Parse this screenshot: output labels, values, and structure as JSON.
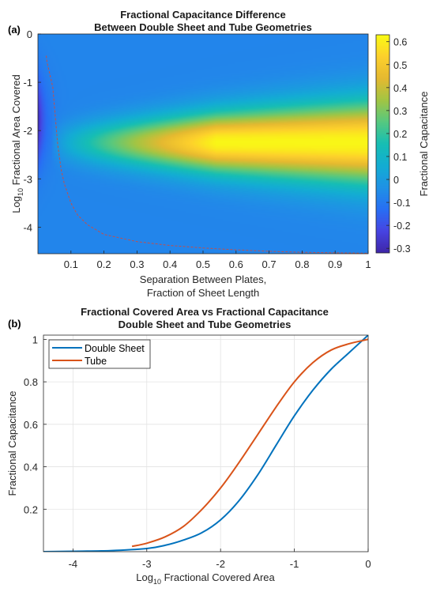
{
  "figure": {
    "panel_a_letter": "(a)",
    "panel_b_letter": "(b)"
  },
  "chart_data": [
    {
      "type": "heatmap",
      "title": "Fractional Capacitance Difference",
      "subtitle": "Between Double Sheet and Tube Geometries",
      "xlabel_line1": "Separation Between Plates,",
      "xlabel_line2": "Fraction of Sheet Length",
      "ylabel_prefix": "Log",
      "ylabel_sub": "10",
      "ylabel_rest": " Fractional  Area  Covered",
      "xlim": [
        0.0,
        1.0
      ],
      "ylim": [
        -4.55,
        0
      ],
      "xticks": [
        0.1,
        0.2,
        0.3,
        0.4,
        0.5,
        0.6,
        0.7,
        0.8,
        0.9,
        1
      ],
      "xtick_labels": [
        "0.1",
        "0.2",
        "0.3",
        "0.4",
        "0.5",
        "0.6",
        "0.7",
        "0.8",
        "0.9",
        "1"
      ],
      "yticks": [
        0,
        -1,
        -2,
        -3,
        -4
      ],
      "ytick_labels": [
        "0",
        "-1",
        "-2",
        "-3",
        "-4"
      ],
      "colorbar": {
        "label": "Fractional Capacitance",
        "range": [
          -0.32,
          0.63
        ],
        "ticks": [
          0.6,
          0.5,
          0.4,
          0.3,
          0.2,
          0.1,
          0,
          -0.1,
          -0.2,
          -0.3
        ],
        "tick_labels": [
          "0.6",
          "0.5",
          "0.4",
          "0.3",
          "0.2",
          "0.1",
          "0",
          "-0.1",
          "-0.2",
          "-0.3"
        ]
      },
      "field": {
        "peak_y": -2.25,
        "peak_value": 0.62,
        "background_value": -0.07,
        "min_value": -0.3
      },
      "zero_contour": {
        "color": "#c0504d",
        "x": [
          0.025,
          0.028,
          0.035,
          0.045,
          0.05,
          0.055,
          0.06,
          0.07,
          0.08,
          0.1,
          0.12,
          0.15,
          0.2,
          0.3,
          0.4,
          0.5,
          0.6,
          0.7,
          0.8,
          0.9,
          1.0
        ],
        "y": [
          -0.45,
          -0.6,
          -0.8,
          -1.1,
          -1.5,
          -1.9,
          -2.3,
          -2.8,
          -3.1,
          -3.5,
          -3.75,
          -3.95,
          -4.15,
          -4.3,
          -4.38,
          -4.43,
          -4.47,
          -4.5,
          -4.52,
          -4.53,
          -4.54
        ]
      }
    },
    {
      "type": "line",
      "title": "Fractional Covered Area vs Fractional Capacitance",
      "subtitle": "Double Sheet and Tube Geometries",
      "xlabel_prefix": "Log",
      "xlabel_sub": "10",
      "xlabel_rest": " Fractional  Covered  Area",
      "ylabel": "Fractional Capacitance",
      "xlim": [
        -4.4,
        0
      ],
      "ylim": [
        0,
        1.02
      ],
      "xticks": [
        -4,
        -3,
        -2,
        -1,
        0
      ],
      "xtick_labels": [
        "-4",
        "-3",
        "-2",
        "-1",
        "0"
      ],
      "yticks": [
        0.2,
        0.4,
        0.6,
        0.8,
        1
      ],
      "ytick_labels": [
        "0.2",
        "0.4",
        "0.6",
        "0.8",
        "1"
      ],
      "grid": true,
      "legend_position": "top-left",
      "series": [
        {
          "name": "Double Sheet",
          "color": "#0072bd",
          "x": [
            -4.4,
            -4.0,
            -3.5,
            -3.0,
            -2.75,
            -2.5,
            -2.25,
            -2.0,
            -1.75,
            -1.5,
            -1.25,
            -1.0,
            -0.75,
            -0.5,
            -0.25,
            0.0
          ],
          "y": [
            0.0,
            0.002,
            0.005,
            0.015,
            0.03,
            0.055,
            0.09,
            0.15,
            0.24,
            0.36,
            0.5,
            0.64,
            0.76,
            0.86,
            0.94,
            1.02
          ]
        },
        {
          "name": "Tube",
          "color": "#d95319",
          "x": [
            -3.2,
            -3.0,
            -2.75,
            -2.5,
            -2.25,
            -2.0,
            -1.75,
            -1.5,
            -1.25,
            -1.0,
            -0.75,
            -0.5,
            -0.25,
            0.0
          ],
          "y": [
            0.025,
            0.04,
            0.07,
            0.12,
            0.2,
            0.3,
            0.42,
            0.55,
            0.68,
            0.8,
            0.89,
            0.95,
            0.98,
            1.0
          ]
        }
      ]
    }
  ]
}
